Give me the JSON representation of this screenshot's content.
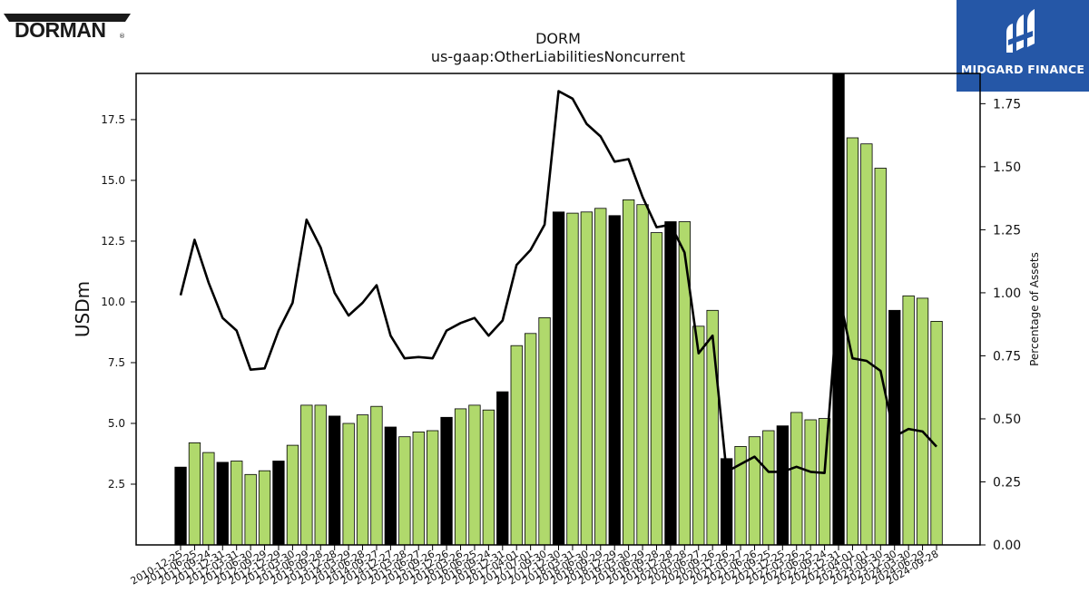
{
  "logos": {
    "left_text": "DORMAN",
    "right_text": "MIDGARD FINANCE"
  },
  "chart_data": {
    "type": "bar",
    "title": "DORM",
    "subtitle": "us-gaap:OtherLiabilitiesNoncurrent",
    "ylabel": "USDm",
    "y2label": "Percentage of Assets",
    "ylim": [
      0.0,
      19.4
    ],
    "y2lim": [
      0.0,
      1.87
    ],
    "yticks": [
      "2.5",
      "5.0",
      "7.5",
      "10.0",
      "12.5",
      "15.0",
      "17.5"
    ],
    "y2ticks": [
      "0.00",
      "0.25",
      "0.50",
      "0.75",
      "1.00",
      "1.25",
      "1.50",
      "1.75"
    ],
    "colors": {
      "annual": "#000000",
      "quarter": "#b0d96c",
      "line": "#000000"
    },
    "categories": [
      "2010-12-25",
      "2011-06-25",
      "2011-09-24",
      "2011-12-31",
      "2012-03-31",
      "2012-06-30",
      "2012-09-29",
      "2012-12-29",
      "2013-03-30",
      "2013-06-29",
      "2013-09-28",
      "2013-12-28",
      "2014-03-29",
      "2014-06-28",
      "2014-09-27",
      "2014-12-27",
      "2015-03-28",
      "2015-06-27",
      "2015-09-26",
      "2015-12-26",
      "2016-03-26",
      "2016-06-25",
      "2016-09-24",
      "2016-12-31",
      "2017-04-01",
      "2017-07-01",
      "2017-09-30",
      "2017-12-30",
      "2018-03-31",
      "2018-06-30",
      "2018-09-29",
      "2018-12-29",
      "2019-03-30",
      "2019-06-29",
      "2019-09-28",
      "2019-12-28",
      "2020-03-28",
      "2020-06-27",
      "2020-09-26",
      "2020-12-26",
      "2021-03-27",
      "2021-06-26",
      "2021-09-25",
      "2021-12-25",
      "2022-03-26",
      "2022-06-25",
      "2022-09-24",
      "2022-12-31",
      "2023-04-01",
      "2023-07-01",
      "2023-09-30",
      "2023-12-30",
      "2024-03-30",
      "2024-06-29",
      "2024-09-28"
    ],
    "xticklabels": [
      "2010-12-25",
      "2011-06-25",
      "2011-09-24",
      "2011-12-31",
      "2012-03-31",
      "2012-06-30",
      "2012-09-29",
      "2012-12-29",
      "2013-03-30",
      "2013-06-29",
      "2013-09-28",
      "2013-12-28",
      "2014-03-29",
      "2014-06-28",
      "2014-09-27",
      "2014-12-27",
      "2015-03-28",
      "2015-06-27",
      "2015-09-26",
      "2015-12-26",
      "2016-03-26",
      "2016-06-25",
      "2016-09-24",
      "2016-12-31",
      "2017-04-01",
      "2017-07-01",
      "2017-09-30",
      "2017-12-30",
      "2018-03-31",
      "2018-06-30",
      "2018-09-29",
      "2018-12-29",
      "2019-03-30",
      "2019-06-29",
      "2019-09-28",
      "2019-12-28",
      "2020-03-28",
      "2020-06-27",
      "2020-09-26",
      "2020-12-26",
      "2021-03-27",
      "2021-06-26",
      "2021-09-25",
      "2021-12-25",
      "2022-03-26",
      "2022-06-25",
      "2022-09-24",
      "2022-12-31",
      "2023-04-01",
      "2023-07-01",
      "2023-09-30",
      "2023-12-30",
      "2024-03-30",
      "2024-06-29",
      "2024-09-28"
    ],
    "annual_flags": [
      1,
      0,
      0,
      1,
      0,
      0,
      0,
      1,
      0,
      0,
      0,
      1,
      0,
      0,
      0,
      1,
      0,
      0,
      0,
      1,
      0,
      0,
      0,
      1,
      0,
      0,
      0,
      1,
      0,
      0,
      0,
      1,
      0,
      0,
      0,
      1,
      0,
      0,
      0,
      1,
      0,
      0,
      0,
      1,
      0,
      0,
      0,
      1,
      0,
      0,
      0,
      1,
      0,
      0,
      0
    ],
    "values": [
      3.2,
      4.2,
      3.8,
      3.4,
      3.45,
      2.9,
      3.05,
      3.45,
      4.1,
      5.75,
      5.75,
      5.3,
      5.0,
      5.35,
      5.7,
      4.85,
      4.45,
      4.65,
      4.7,
      5.25,
      5.6,
      5.75,
      5.55,
      6.3,
      8.2,
      8.7,
      9.35,
      13.7,
      13.65,
      13.7,
      13.85,
      13.55,
      14.2,
      14.0,
      12.85,
      13.3,
      13.3,
      9.0,
      9.65,
      3.55,
      4.05,
      4.45,
      4.7,
      4.9,
      5.45,
      5.15,
      5.2,
      19.4,
      16.75,
      16.5,
      15.5,
      9.65,
      10.25,
      10.15,
      9.2
    ],
    "pct_assets": [
      0.99,
      1.21,
      1.04,
      0.9,
      0.85,
      0.695,
      0.7,
      0.85,
      0.96,
      1.29,
      1.18,
      1.0,
      0.91,
      0.96,
      1.03,
      0.83,
      0.74,
      0.745,
      0.74,
      0.85,
      0.88,
      0.9,
      0.83,
      0.89,
      1.11,
      1.17,
      1.27,
      1.8,
      1.77,
      1.67,
      1.62,
      1.52,
      1.53,
      1.38,
      1.26,
      1.27,
      1.16,
      0.76,
      0.83,
      0.29,
      0.32,
      0.35,
      0.29,
      0.29,
      0.31,
      0.29,
      0.285,
      1.0,
      0.74,
      0.73,
      0.69,
      0.43,
      0.46,
      0.45,
      0.39
    ]
  }
}
